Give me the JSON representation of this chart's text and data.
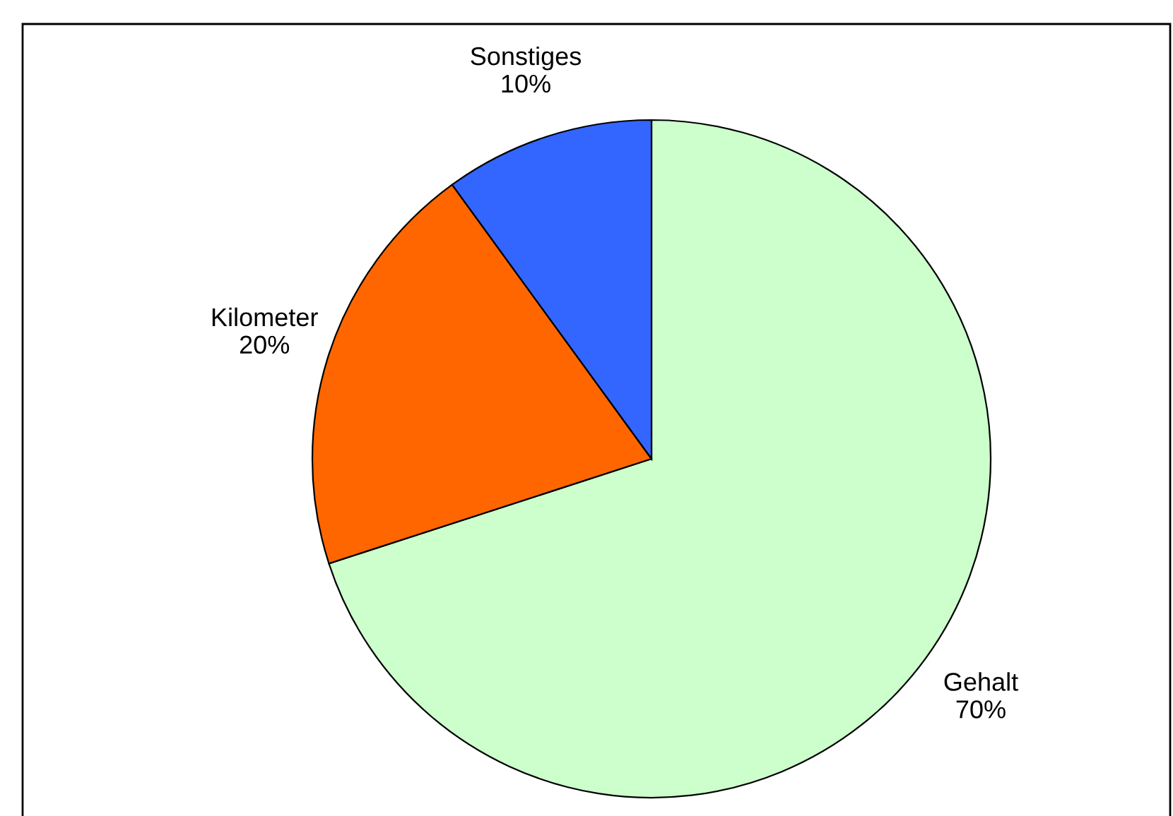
{
  "chart_data": {
    "type": "pie",
    "categories": [
      "Gehalt",
      "Kilometer",
      "Sonstiges"
    ],
    "values": [
      70,
      20,
      10
    ],
    "value_labels": [
      "70%",
      "20%",
      "10%"
    ],
    "colors": [
      "#ccffcc",
      "#ff6600",
      "#3366ff"
    ],
    "legend": false
  }
}
